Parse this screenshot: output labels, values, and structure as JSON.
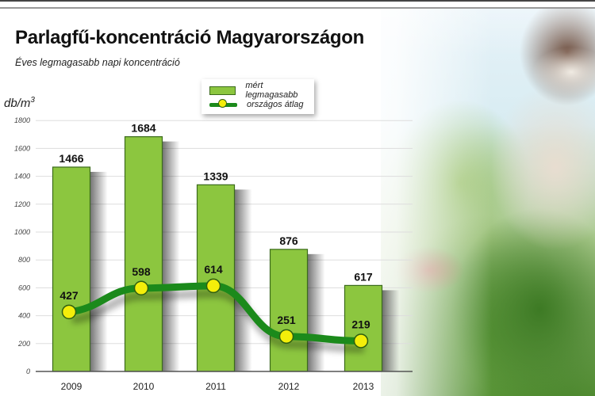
{
  "header": {
    "title": "Parlagfű-koncentráció Magyarországon",
    "subtitle": "Éves legmagasabb napi koncentráció",
    "y_unit_base": "db/m",
    "y_unit_exp": "3"
  },
  "legend": {
    "items": [
      {
        "label": "mért legmagasabb",
        "kind": "bar"
      },
      {
        "label": "országos átlag",
        "kind": "line"
      }
    ]
  },
  "colors": {
    "bar_fill": "#8cc63f",
    "bar_border": "#3b6b1c",
    "line": "#1b8a1b",
    "marker_fill": "#f4ee0a",
    "marker_border": "#2f5f10",
    "grid": "#dddddd",
    "axis": "#555555"
  },
  "chart_data": {
    "type": "bar",
    "title": "Parlagfű-koncentráció Magyarországon",
    "subtitle": "Éves legmagasabb napi koncentráció",
    "xlabel": "",
    "ylabel": "db/m³",
    "ylim": [
      0,
      1800
    ],
    "yticks": [
      0,
      200,
      400,
      600,
      800,
      1000,
      1200,
      1400,
      1600,
      1800
    ],
    "grid": true,
    "legend_position": "top-center",
    "categories": [
      "2009",
      "2010",
      "2011",
      "2012",
      "2013"
    ],
    "series": [
      {
        "name": "mért legmagasabb",
        "type": "bar",
        "values": [
          1466,
          1684,
          1339,
          876,
          617
        ]
      },
      {
        "name": "országos átlag",
        "type": "line",
        "values": [
          427,
          598,
          614,
          251,
          219
        ]
      }
    ]
  }
}
